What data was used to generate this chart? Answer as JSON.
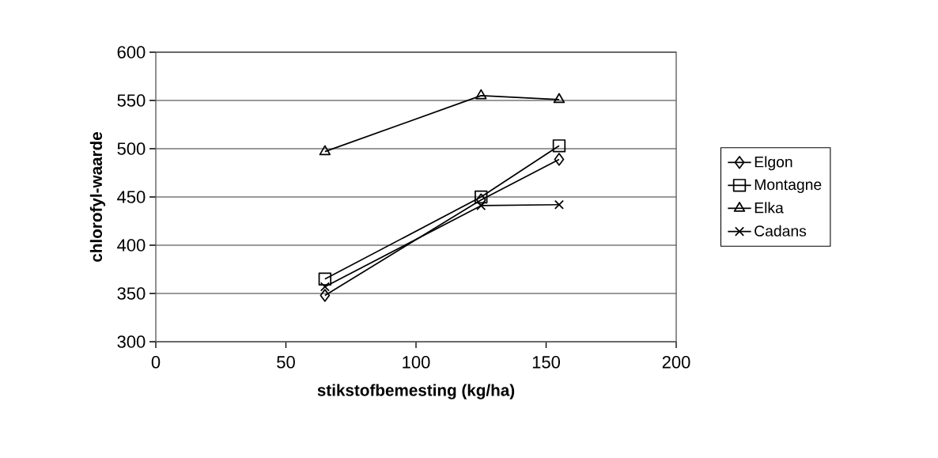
{
  "chart_data": {
    "type": "line",
    "xlabel": "stikstofbemesting (kg/ha)",
    "ylabel": "chlorofyl-waarde",
    "x": [
      65,
      125,
      155
    ],
    "series": [
      {
        "name": "Elgon",
        "color": "#000000",
        "marker": "diamond",
        "values": [
          348,
          447,
          489
        ]
      },
      {
        "name": "Montagne",
        "color": "#000000",
        "marker": "square",
        "values": [
          365,
          450,
          503
        ]
      },
      {
        "name": "Elka",
        "color": "#000000",
        "marker": "triangle",
        "values": [
          497,
          555,
          551
        ]
      },
      {
        "name": "Cadans",
        "color": "#000000",
        "marker": "cross",
        "values": [
          357,
          441,
          442
        ]
      }
    ],
    "xlim": [
      0,
      200
    ],
    "xticks": [
      0,
      50,
      100,
      150,
      200
    ],
    "ylim": [
      300,
      600
    ],
    "yticks": [
      300,
      350,
      400,
      450,
      500,
      550,
      600
    ],
    "grid": "y",
    "legend": "right",
    "line_style": "solid"
  }
}
